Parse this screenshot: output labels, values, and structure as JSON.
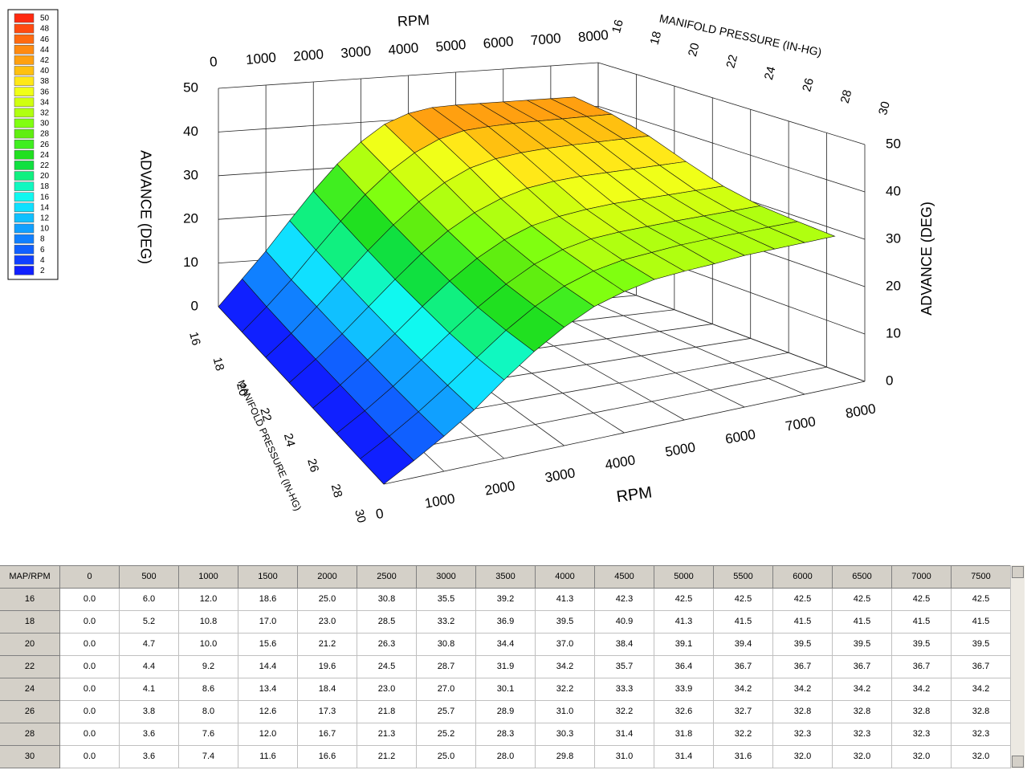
{
  "legend": {
    "levels": [
      50,
      48,
      46,
      44,
      42,
      40,
      38,
      36,
      34,
      32,
      30,
      28,
      26,
      24,
      22,
      20,
      18,
      16,
      14,
      12,
      10,
      8,
      6,
      4,
      2
    ],
    "colors": [
      "#ff2a10",
      "#ff4a10",
      "#ff6a10",
      "#ff8a10",
      "#ffa010",
      "#ffc010",
      "#ffe818",
      "#f0ff18",
      "#d0ff10",
      "#b0ff10",
      "#80ff10",
      "#60ee10",
      "#40ee20",
      "#20e020",
      "#10e040",
      "#10f080",
      "#10f8c0",
      "#10f8f0",
      "#10e0ff",
      "#10c0ff",
      "#10a0ff",
      "#1080ff",
      "#1060ff",
      "#1040ff",
      "#1020ff"
    ]
  },
  "plot": {
    "rpm_title": "RPM",
    "map_title": "MANIFOLD PRESSURE (IN-HG)",
    "advance_title": "ADVANCE (DEG)",
    "rpm_ticks": [
      0,
      1000,
      2000,
      3000,
      4000,
      5000,
      6000,
      7000,
      8000
    ],
    "map_ticks": [
      16,
      18,
      20,
      22,
      24,
      26,
      28,
      30
    ],
    "advance_ticks": [
      0,
      10,
      20,
      30,
      40,
      50
    ]
  },
  "table": {
    "corner": "MAP/RPM",
    "columns": [
      0,
      500,
      1000,
      1500,
      2000,
      2500,
      3000,
      3500,
      4000,
      4500,
      5000,
      5500,
      6000,
      6500,
      7000,
      7500
    ],
    "rows": [
      {
        "map": 16,
        "values": [
          "0.0",
          "6.0",
          "12.0",
          "18.6",
          "25.0",
          "30.8",
          "35.5",
          "39.2",
          "41.3",
          "42.3",
          "42.5",
          "42.5",
          "42.5",
          "42.5",
          "42.5",
          "42.5"
        ]
      },
      {
        "map": 18,
        "values": [
          "0.0",
          "5.2",
          "10.8",
          "17.0",
          "23.0",
          "28.5",
          "33.2",
          "36.9",
          "39.5",
          "40.9",
          "41.3",
          "41.5",
          "41.5",
          "41.5",
          "41.5",
          "41.5"
        ]
      },
      {
        "map": 20,
        "values": [
          "0.0",
          "4.7",
          "10.0",
          "15.6",
          "21.2",
          "26.3",
          "30.8",
          "34.4",
          "37.0",
          "38.4",
          "39.1",
          "39.4",
          "39.5",
          "39.5",
          "39.5",
          "39.5"
        ]
      },
      {
        "map": 22,
        "values": [
          "0.0",
          "4.4",
          "9.2",
          "14.4",
          "19.6",
          "24.5",
          "28.7",
          "31.9",
          "34.2",
          "35.7",
          "36.4",
          "36.7",
          "36.7",
          "36.7",
          "36.7",
          "36.7"
        ]
      },
      {
        "map": 24,
        "values": [
          "0.0",
          "4.1",
          "8.6",
          "13.4",
          "18.4",
          "23.0",
          "27.0",
          "30.1",
          "32.2",
          "33.3",
          "33.9",
          "34.2",
          "34.2",
          "34.2",
          "34.2",
          "34.2"
        ]
      },
      {
        "map": 26,
        "values": [
          "0.0",
          "3.8",
          "8.0",
          "12.6",
          "17.3",
          "21.8",
          "25.7",
          "28.9",
          "31.0",
          "32.2",
          "32.6",
          "32.7",
          "32.8",
          "32.8",
          "32.8",
          "32.8"
        ]
      },
      {
        "map": 28,
        "values": [
          "0.0",
          "3.6",
          "7.6",
          "12.0",
          "16.7",
          "21.3",
          "25.2",
          "28.3",
          "30.3",
          "31.4",
          "31.8",
          "32.2",
          "32.3",
          "32.3",
          "32.3",
          "32.3"
        ]
      },
      {
        "map": 30,
        "values": [
          "0.0",
          "3.6",
          "7.4",
          "11.6",
          "16.6",
          "21.2",
          "25.0",
          "28.0",
          "29.8",
          "31.0",
          "31.4",
          "31.6",
          "32.0",
          "32.0",
          "32.0",
          "32.0"
        ]
      }
    ]
  }
}
